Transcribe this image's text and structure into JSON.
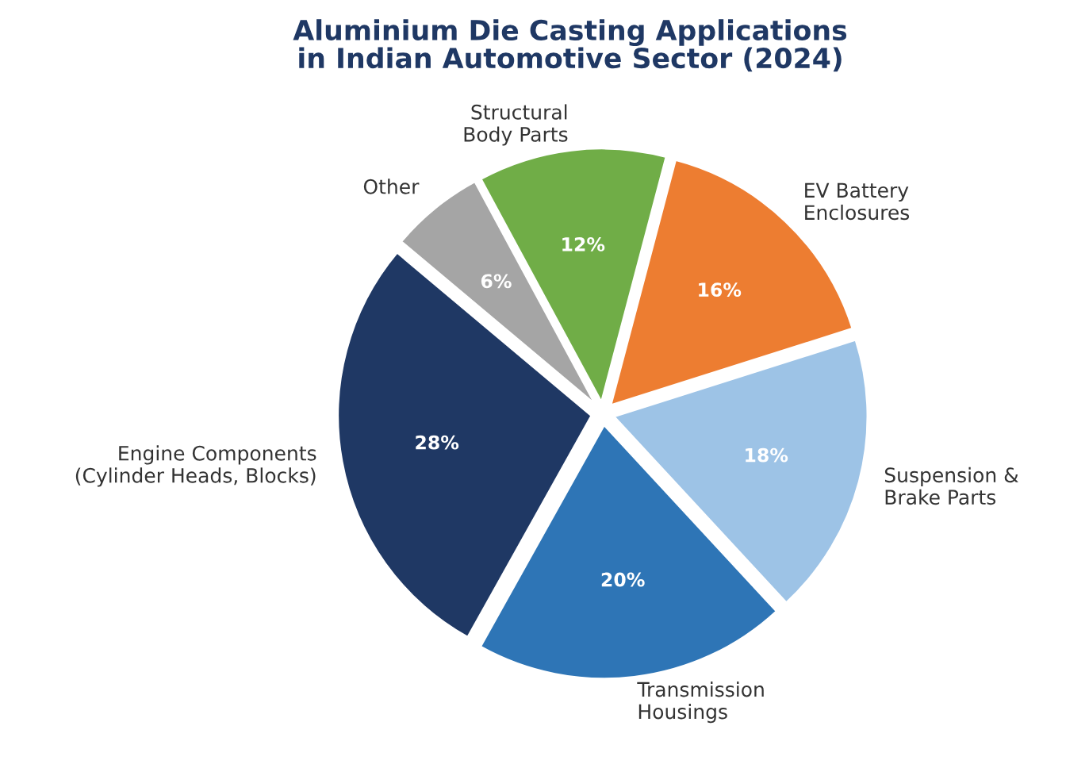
{
  "chart_data": {
    "type": "pie",
    "title": "Aluminium Die Casting Applications\nin Indian Automotive Sector (2024)",
    "categories": [
      "Engine Components\n(Cylinder Heads, Blocks)",
      "Transmission\nHousings",
      "Suspension &\nBrake Parts",
      "EV Battery\nEnclosures",
      "Structural\nBody Parts",
      "Other"
    ],
    "values": [
      28,
      20,
      18,
      16,
      12,
      6
    ],
    "colors": [
      "#1f3864",
      "#2e75b6",
      "#9dc3e6",
      "#ed7d31",
      "#70ad47",
      "#a5a5a5"
    ],
    "value_labels": [
      "28%",
      "20%",
      "18%",
      "16%",
      "12%",
      "6%"
    ]
  }
}
